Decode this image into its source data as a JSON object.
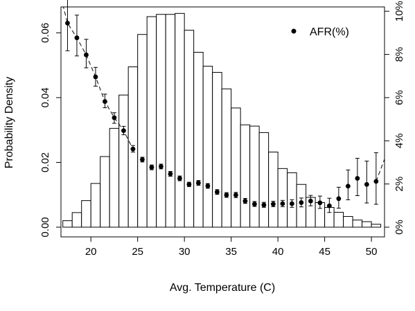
{
  "chart_data": {
    "type": "bar+scatter",
    "xlabel": "Avg. Temperature (C)",
    "ylabel": "Probability Density",
    "xlim": [
      16.8,
      51.4
    ],
    "ylim": [
      -0.003,
      0.068
    ],
    "ylim_right": [
      -0.0045,
      0.102
    ],
    "grid": false,
    "legend_position": "top-right",
    "x_ticks": [
      20,
      25,
      30,
      35,
      40,
      45,
      50
    ],
    "y_ticks": [
      "0.00",
      "0.02",
      "0.04",
      "0.06"
    ],
    "y_tick_values": [
      0,
      0.02,
      0.04,
      0.06
    ],
    "y2_ticks": [
      "0%",
      "2%",
      "4%",
      "6%",
      "8%",
      "10%"
    ],
    "y2_tick_values": [
      0,
      0.02,
      0.04,
      0.06,
      0.08,
      0.1
    ],
    "histogram": {
      "bin_width": 1,
      "bins": [
        {
          "start": 17,
          "density": 0.002
        },
        {
          "start": 18,
          "density": 0.0045
        },
        {
          "start": 19,
          "density": 0.0082
        },
        {
          "start": 20,
          "density": 0.0135
        },
        {
          "start": 21,
          "density": 0.0218
        },
        {
          "start": 22,
          "density": 0.0305
        },
        {
          "start": 23,
          "density": 0.0408
        },
        {
          "start": 24,
          "density": 0.0495
        },
        {
          "start": 25,
          "density": 0.0595
        },
        {
          "start": 26,
          "density": 0.065
        },
        {
          "start": 27,
          "density": 0.0657
        },
        {
          "start": 28,
          "density": 0.0657
        },
        {
          "start": 29,
          "density": 0.066
        },
        {
          "start": 30,
          "density": 0.0608
        },
        {
          "start": 31,
          "density": 0.054
        },
        {
          "start": 32,
          "density": 0.0497
        },
        {
          "start": 33,
          "density": 0.0478
        },
        {
          "start": 34,
          "density": 0.0427
        },
        {
          "start": 35,
          "density": 0.0368
        },
        {
          "start": 36,
          "density": 0.0316
        },
        {
          "start": 37,
          "density": 0.0312
        },
        {
          "start": 38,
          "density": 0.0292
        },
        {
          "start": 39,
          "density": 0.0232
        },
        {
          "start": 40,
          "density": 0.0181
        },
        {
          "start": 41,
          "density": 0.0168
        },
        {
          "start": 42,
          "density": 0.0132
        },
        {
          "start": 43,
          "density": 0.0092
        },
        {
          "start": 44,
          "density": 0.0076
        },
        {
          "start": 45,
          "density": 0.0061
        },
        {
          "start": 46,
          "density": 0.0046
        },
        {
          "start": 47,
          "density": 0.0033
        },
        {
          "start": 48,
          "density": 0.0022
        },
        {
          "start": 49,
          "density": 0.0017
        },
        {
          "start": 50,
          "density": 0.0009
        }
      ]
    },
    "series": [
      {
        "name": "AFR(%)",
        "axis": "right",
        "points": [
          {
            "x": 17.5,
            "y": 0.0945,
            "lo": 0.0817,
            "hi": 0.1072
          },
          {
            "x": 18.5,
            "y": 0.0877,
            "lo": 0.0793,
            "hi": 0.0982
          },
          {
            "x": 19.5,
            "y": 0.0798,
            "lo": 0.0738,
            "hi": 0.087
          },
          {
            "x": 20.5,
            "y": 0.0696,
            "lo": 0.0653,
            "hi": 0.074
          },
          {
            "x": 21.5,
            "y": 0.0582,
            "lo": 0.0553,
            "hi": 0.0616
          },
          {
            "x": 22.5,
            "y": 0.0507,
            "lo": 0.0481,
            "hi": 0.053
          },
          {
            "x": 23.5,
            "y": 0.0447,
            "lo": 0.0428,
            "hi": 0.0467
          },
          {
            "x": 24.5,
            "y": 0.0362,
            "lo": 0.0348,
            "hi": 0.0378
          },
          {
            "x": 25.5,
            "y": 0.0313,
            "lo": 0.0302,
            "hi": 0.0324
          },
          {
            "x": 26.5,
            "y": 0.0277,
            "lo": 0.0266,
            "hi": 0.0288
          },
          {
            "x": 27.5,
            "y": 0.0281,
            "lo": 0.027,
            "hi": 0.0292
          },
          {
            "x": 28.5,
            "y": 0.0247,
            "lo": 0.0236,
            "hi": 0.0258
          },
          {
            "x": 29.5,
            "y": 0.0226,
            "lo": 0.0215,
            "hi": 0.0237
          },
          {
            "x": 30.5,
            "y": 0.0198,
            "lo": 0.0188,
            "hi": 0.0208
          },
          {
            "x": 31.5,
            "y": 0.0205,
            "lo": 0.0194,
            "hi": 0.0216
          },
          {
            "x": 32.5,
            "y": 0.0191,
            "lo": 0.018,
            "hi": 0.0202
          },
          {
            "x": 33.5,
            "y": 0.0163,
            "lo": 0.0152,
            "hi": 0.0174
          },
          {
            "x": 34.5,
            "y": 0.0149,
            "lo": 0.0138,
            "hi": 0.016
          },
          {
            "x": 35.5,
            "y": 0.0149,
            "lo": 0.0137,
            "hi": 0.0161
          },
          {
            "x": 36.5,
            "y": 0.0121,
            "lo": 0.011,
            "hi": 0.0133
          },
          {
            "x": 37.5,
            "y": 0.0107,
            "lo": 0.0096,
            "hi": 0.0119
          },
          {
            "x": 38.5,
            "y": 0.0103,
            "lo": 0.0092,
            "hi": 0.0115
          },
          {
            "x": 39.5,
            "y": 0.0107,
            "lo": 0.0095,
            "hi": 0.012
          },
          {
            "x": 40.5,
            "y": 0.0109,
            "lo": 0.0095,
            "hi": 0.0124
          },
          {
            "x": 41.5,
            "y": 0.0109,
            "lo": 0.0092,
            "hi": 0.0127
          },
          {
            "x": 42.5,
            "y": 0.0114,
            "lo": 0.0094,
            "hi": 0.0135
          },
          {
            "x": 43.5,
            "y": 0.0121,
            "lo": 0.0099,
            "hi": 0.0147
          },
          {
            "x": 44.5,
            "y": 0.0113,
            "lo": 0.0087,
            "hi": 0.0144
          },
          {
            "x": 45.5,
            "y": 0.0099,
            "lo": 0.0068,
            "hi": 0.0134
          },
          {
            "x": 46.5,
            "y": 0.0132,
            "lo": 0.0088,
            "hi": 0.0185
          },
          {
            "x": 47.5,
            "y": 0.019,
            "lo": 0.0127,
            "hi": 0.0265
          },
          {
            "x": 48.5,
            "y": 0.0226,
            "lo": 0.0146,
            "hi": 0.0319
          },
          {
            "x": 49.5,
            "y": 0.0198,
            "lo": 0.0112,
            "hi": 0.0306
          },
          {
            "x": 50.5,
            "y": 0.0212,
            "lo": 0.0106,
            "hi": 0.0345
          }
        ]
      }
    ],
    "trend_line": {
      "style": "dashed",
      "x": [
        17.0,
        17.5,
        18.5,
        19.5,
        20.5,
        21.5,
        22.5,
        23.5,
        24.5
      ],
      "y": [
        0.103,
        0.0945,
        0.0877,
        0.0798,
        0.0696,
        0.0582,
        0.0507,
        0.0447,
        0.0362
      ],
      "end_x": [
        50.5,
        51.4
      ],
      "end_y": [
        0.0212,
        0.0315
      ]
    }
  }
}
